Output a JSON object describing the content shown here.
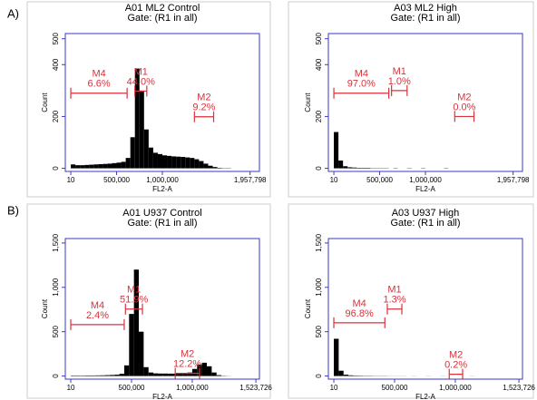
{
  "panel_labels": [
    "A)",
    "B)"
  ],
  "chart_data": [
    {
      "type": "histogram",
      "title": "A01 ML2 Control",
      "subtitle": "Gate: (R1 in all)",
      "xlabel": "FL2-A",
      "ylabel": "Count",
      "xlim": [
        -60000,
        2060000
      ],
      "ylim": [
        -12,
        520
      ],
      "xticks": [
        10,
        {
          "value": 500000,
          "label": "500,000"
        },
        {
          "value": 1000000,
          "label": "1,000,000"
        },
        {
          "value": 1957798,
          "label": "1,957,798"
        }
      ],
      "yticks": [
        0,
        200,
        400,
        500
      ],
      "bins": [
        0,
        50000,
        100000,
        150000,
        200000,
        250000,
        300000,
        350000,
        400000,
        450000,
        500000,
        550000,
        600000,
        650000,
        700000,
        750000,
        800000,
        850000,
        900000,
        950000,
        1000000,
        1050000,
        1100000,
        1150000,
        1200000,
        1250000,
        1300000,
        1350000,
        1400000,
        1450000,
        1500000,
        1550000,
        1600000,
        1650000,
        1700000,
        1750000,
        1800000,
        1850000,
        1900000,
        1950000,
        2000000
      ],
      "counts": [
        15,
        12,
        12,
        13,
        14,
        15,
        16,
        17,
        18,
        20,
        22,
        25,
        40,
        120,
        385,
        300,
        150,
        80,
        60,
        55,
        50,
        48,
        46,
        45,
        44,
        42,
        40,
        35,
        28,
        18,
        10,
        5,
        2,
        1,
        1,
        0,
        0,
        0,
        0,
        0
      ],
      "color": "#000000",
      "marker_color": "#d8323c",
      "markers": [
        {
          "name": "M1",
          "label": "44.0%",
          "range": [
            700000,
            830000
          ],
          "level": 298
        },
        {
          "name": "M4",
          "label": "6.6%",
          "range": [
            10,
            615000
          ],
          "level": 290
        },
        {
          "name": "M2",
          "label": "9.2%",
          "range": [
            1350000,
            1560000
          ],
          "level": 199
        }
      ]
    },
    {
      "type": "histogram",
      "title": "A03 ML2 High",
      "subtitle": "Gate: (R1 in all)",
      "xlabel": "FL2-A",
      "ylabel": "Count",
      "xlim": [
        -60000,
        2060000
      ],
      "ylim": [
        -12,
        520
      ],
      "xticks": [
        10,
        {
          "value": 500000,
          "label": "500,000"
        },
        {
          "value": 1000000,
          "label": "1,000,000"
        },
        {
          "value": 1957798,
          "label": "1,957,798"
        }
      ],
      "yticks": [
        0,
        200,
        400,
        500
      ],
      "bins": [
        0,
        50000,
        100000,
        150000,
        200000,
        250000,
        300000,
        350000,
        400000,
        450000,
        500000,
        550000,
        600000,
        650000,
        700000,
        750000,
        800000,
        850000,
        900000,
        950000,
        1000000,
        1050000,
        1100000,
        1150000,
        1200000,
        1250000,
        1300000,
        1350000,
        1400000,
        1450000,
        1500000,
        1550000,
        1600000,
        1650000,
        1700000,
        1750000,
        1800000,
        1850000,
        1900000,
        1950000,
        2000000
      ],
      "counts": [
        140,
        30,
        8,
        4,
        3,
        2,
        2,
        2,
        1,
        1,
        1,
        1,
        0,
        1,
        0,
        0,
        1,
        0,
        0,
        1,
        0,
        0,
        0,
        0,
        1,
        0,
        0,
        0,
        0,
        0,
        0,
        0,
        0,
        0,
        0,
        0,
        0,
        0,
        0,
        0
      ],
      "color": "#000000",
      "marker_color": "#d8323c",
      "markers": [
        {
          "name": "M1",
          "label": "1.0%",
          "range": [
            630000,
            800000
          ],
          "level": 300
        },
        {
          "name": "M4",
          "label": "97.0%",
          "range": [
            10,
            600000
          ],
          "level": 290
        },
        {
          "name": "M2",
          "label": "0.0%",
          "range": [
            1320000,
            1530000
          ],
          "level": 200
        }
      ]
    },
    {
      "type": "histogram",
      "title": "A01 U937 Control",
      "subtitle": "Gate: (R1 in all)",
      "xlabel": "FL2-A",
      "ylabel": "Count",
      "xlim": [
        -45000,
        1553000
      ],
      "ylim": [
        -35,
        1550
      ],
      "xticks": [
        10,
        {
          "value": 500000,
          "label": "500,000"
        },
        {
          "value": 1000000,
          "label": "1,000,000"
        },
        {
          "value": 1523726,
          "label": "1,523,726"
        }
      ],
      "yticks": [
        0,
        500,
        {
          "value": 1000,
          "label": "1,000"
        },
        {
          "value": 1500,
          "label": "1,500"
        }
      ],
      "bins": [
        0,
        40000,
        80000,
        120000,
        160000,
        200000,
        240000,
        280000,
        320000,
        360000,
        400000,
        440000,
        480000,
        520000,
        560000,
        600000,
        640000,
        680000,
        720000,
        760000,
        800000,
        840000,
        880000,
        920000,
        960000,
        1000000,
        1040000,
        1080000,
        1120000,
        1160000,
        1200000,
        1240000,
        1280000,
        1320000,
        1360000,
        1400000,
        1440000,
        1480000,
        1520000,
        1560000,
        1600000
      ],
      "counts": [
        5,
        5,
        5,
        6,
        6,
        7,
        8,
        10,
        12,
        15,
        25,
        120,
        700,
        1200,
        500,
        100,
        40,
        30,
        28,
        28,
        27,
        27,
        28,
        30,
        40,
        80,
        130,
        150,
        110,
        40,
        10,
        3,
        1,
        0,
        0,
        0,
        0,
        0,
        0,
        0
      ],
      "color": "#000000",
      "marker_color": "#d8323c",
      "markers": [
        {
          "name": "M1",
          "label": "51.9%",
          "range": [
            450000,
            590000
          ],
          "level": 755
        },
        {
          "name": "M4",
          "label": "2.4%",
          "range": [
            10,
            440000
          ],
          "level": 580
        },
        {
          "name": "M2",
          "label": "12.2%",
          "range": [
            860000,
            1060000
          ],
          "level": 30
        }
      ]
    },
    {
      "type": "histogram",
      "title": "A03 U937 High",
      "subtitle": "Gate: (R1 in all)",
      "xlabel": "FL2-A",
      "ylabel": "Count",
      "xlim": [
        -45000,
        1553000
      ],
      "ylim": [
        -35,
        1550
      ],
      "xticks": [
        10,
        {
          "value": 500000,
          "label": "500,000"
        },
        {
          "value": 1000000,
          "label": "1,000,000"
        },
        {
          "value": 1523726,
          "label": "1,523,726"
        }
      ],
      "yticks": [
        0,
        500,
        {
          "value": 1000,
          "label": "1,000"
        },
        {
          "value": 1500,
          "label": "1,500"
        }
      ],
      "bins": [
        0,
        40000,
        80000,
        120000,
        160000,
        200000,
        240000,
        280000,
        320000,
        360000,
        400000,
        440000,
        480000,
        520000,
        560000,
        600000,
        640000,
        680000,
        720000,
        760000,
        800000,
        840000,
        880000,
        920000,
        960000,
        1000000,
        1040000,
        1080000,
        1120000,
        1160000,
        1200000,
        1240000,
        1280000,
        1320000,
        1360000,
        1400000,
        1440000,
        1480000,
        1520000,
        1560000,
        1600000
      ],
      "counts": [
        420,
        60,
        15,
        8,
        5,
        4,
        3,
        3,
        2,
        2,
        2,
        1,
        1,
        1,
        1,
        0,
        1,
        0,
        0,
        1,
        0,
        0,
        1,
        0,
        0,
        0,
        0,
        0,
        1,
        0,
        0,
        0,
        0,
        0,
        0,
        0,
        0,
        0,
        0,
        0
      ],
      "color": "#000000",
      "marker_color": "#d8323c",
      "markers": [
        {
          "name": "M1",
          "label": "1.3%",
          "range": [
            440000,
            560000
          ],
          "level": 755
        },
        {
          "name": "M4",
          "label": "96.8%",
          "range": [
            10,
            420000
          ],
          "level": 600
        },
        {
          "name": "M2",
          "label": "0.2%",
          "range": [
            950000,
            1060000
          ],
          "level": 20
        }
      ]
    }
  ]
}
